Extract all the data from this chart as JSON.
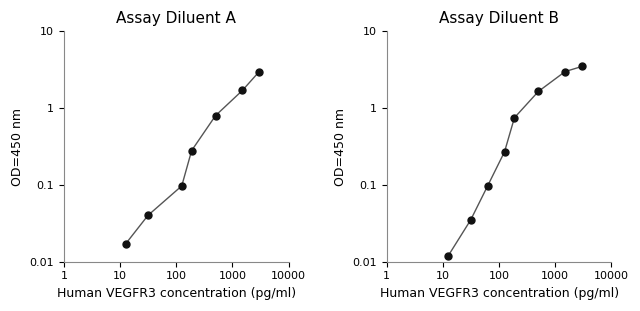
{
  "panel_A": {
    "title": "Assay Diluent A",
    "x": [
      12.5,
      31.25,
      125,
      187.5,
      500,
      1500,
      3000
    ],
    "y": [
      0.017,
      0.04,
      0.097,
      0.28,
      0.8,
      1.7,
      3.0
    ],
    "xlabel": "Human VEGFR3 concentration (pg/ml)",
    "ylabel": "OD=450 nm",
    "xlim": [
      1,
      10000
    ],
    "ylim": [
      0.01,
      10
    ]
  },
  "panel_B": {
    "title": "Assay Diluent B",
    "x": [
      12.5,
      31.25,
      62.5,
      125,
      187.5,
      500,
      1500,
      3000
    ],
    "y": [
      0.012,
      0.035,
      0.097,
      0.27,
      0.75,
      1.65,
      3.0,
      3.5
    ],
    "xlabel": "Human VEGFR3 concentration (pg/ml)",
    "ylabel": "OD=450 nm",
    "xlim": [
      1,
      10000
    ],
    "ylim": [
      0.01,
      10
    ]
  },
  "line_color": "#555555",
  "marker_color": "#111111",
  "marker_size": 5,
  "line_width": 1.0,
  "title_fontsize": 11,
  "label_fontsize": 9,
  "tick_fontsize": 8,
  "bg_color": "#ffffff",
  "xticks": [
    1,
    10,
    100,
    1000,
    10000
  ],
  "yticks": [
    0.01,
    0.1,
    1,
    10
  ]
}
